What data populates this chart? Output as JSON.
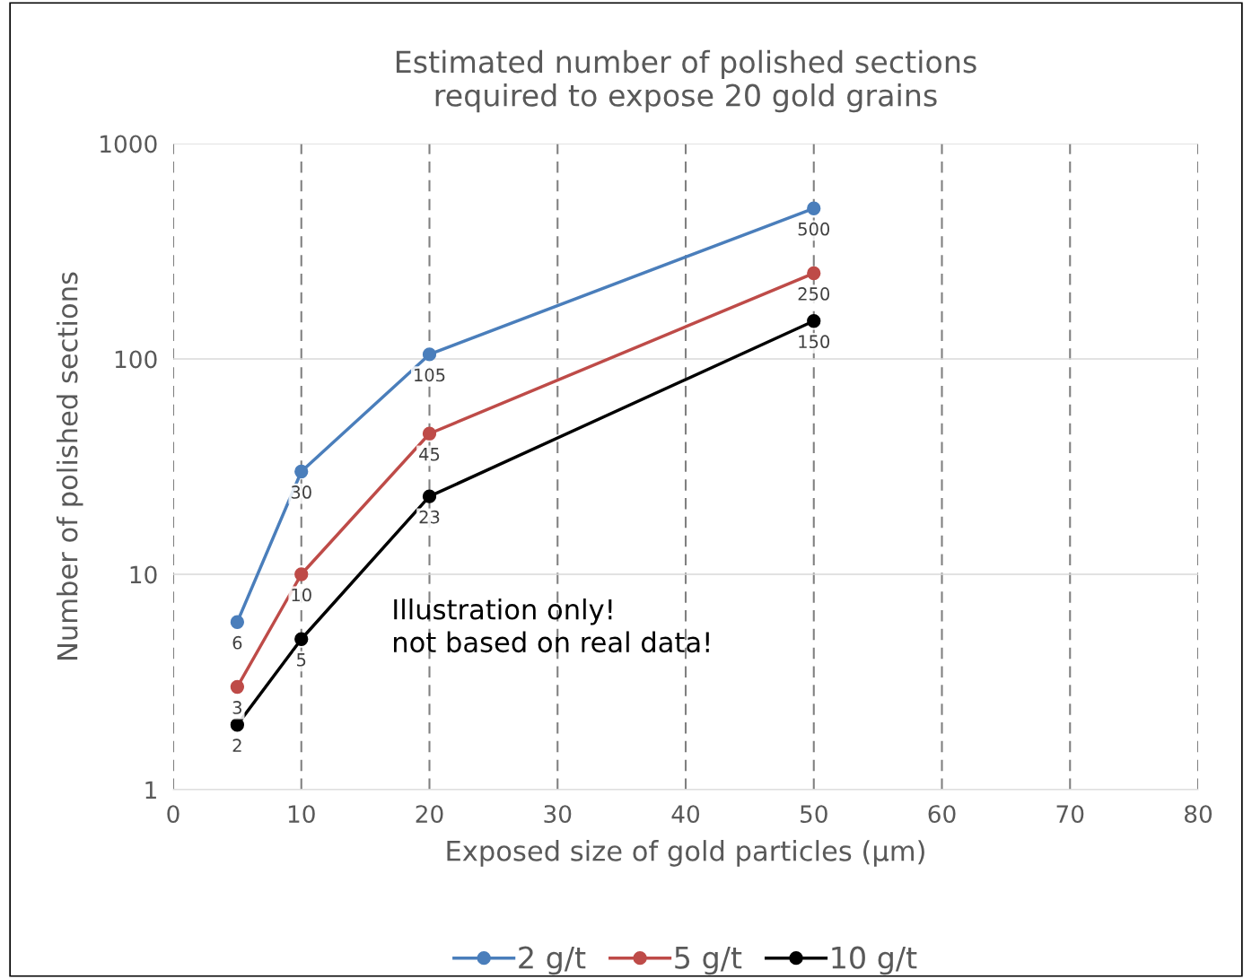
{
  "chart_data": {
    "type": "line",
    "title": "Estimated number of polished sections\nrequired to expose 20 gold grains",
    "xlabel": "Exposed size of gold particles (µm)",
    "ylabel": "Number of polished sections",
    "x": [
      5,
      10,
      20,
      50
    ],
    "series": [
      {
        "name": "2 g/t",
        "color": "#4a7ebb",
        "values": [
          6,
          30,
          105,
          500
        ]
      },
      {
        "name": "5 g/t",
        "color": "#be4b48",
        "values": [
          3,
          10,
          45,
          250
        ]
      },
      {
        "name": "10 g/t",
        "color": "#000000",
        "values": [
          2,
          5,
          23,
          150
        ]
      }
    ],
    "log": "y",
    "xlim": [
      0,
      80
    ],
    "xticks": [
      0,
      10,
      20,
      30,
      40,
      50,
      60,
      70,
      80
    ],
    "ylim": [
      1,
      1000
    ],
    "yticks": [
      1,
      10,
      100,
      1000
    ],
    "grid": true,
    "legend": "bottom",
    "marker": "circle",
    "line_style": "solid",
    "data_labels": true,
    "annotations": [
      "Illustration only!\nnot based on real data!"
    ]
  }
}
